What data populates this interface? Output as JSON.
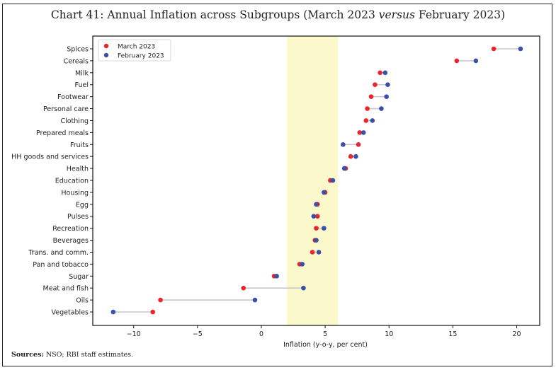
{
  "chart_data": {
    "type": "dumbbell",
    "title_prefix": "Chart 41: Annual Inflation across Subgroups (March 2023 ",
    "title_italic": "versus",
    "title_suffix": " February 2023)",
    "xlabel": "Inflation (y-o-y, per cent)",
    "ylabel": "",
    "xlim": [
      -13.2,
      21.8
    ],
    "xticks": [
      -10,
      -5,
      0,
      5,
      10,
      15,
      20
    ],
    "xtick_labels": [
      "−10",
      "−5",
      "0",
      "5",
      "10",
      "15",
      "20"
    ],
    "shaded_band": [
      2,
      6
    ],
    "grid": false,
    "legend_position": "top-left",
    "categories": [
      "Spices",
      "Cereals",
      "Milk",
      "Fuel",
      "Footwear",
      "Personal care",
      "Clothing",
      "Prepared meals",
      "Fruits",
      "HH goods and services",
      "Health",
      "Education",
      "Housing",
      "Egg",
      "Pulses",
      "Recreation",
      "Beverages",
      "Trans. and comm.",
      "Pan and tobacco",
      "Sugar",
      "Meat and fish",
      "Oils",
      "Vegetables"
    ],
    "series": [
      {
        "name": "March 2023",
        "color": "#e8262b",
        "values": [
          18.2,
          15.3,
          9.3,
          8.9,
          8.6,
          8.3,
          8.2,
          7.7,
          7.6,
          7.0,
          6.6,
          5.4,
          5.0,
          4.4,
          4.4,
          4.3,
          4.2,
          4.0,
          3.0,
          1.0,
          -1.4,
          -7.9,
          -8.5
        ]
      },
      {
        "name": "February 2023",
        "color": "#3b4fa8",
        "values": [
          20.3,
          16.8,
          9.7,
          9.9,
          9.8,
          9.4,
          8.7,
          8.0,
          6.4,
          7.4,
          6.5,
          5.6,
          4.9,
          4.3,
          4.1,
          4.9,
          4.3,
          4.5,
          3.2,
          1.2,
          3.3,
          -0.5,
          -11.6
        ]
      }
    ],
    "colors": {
      "band": "#fbf8cc",
      "connector": "#c8c8c8"
    }
  },
  "footer": {
    "sources_label": "Sources:",
    "sources_text": " NSO; RBI staff estimates."
  }
}
